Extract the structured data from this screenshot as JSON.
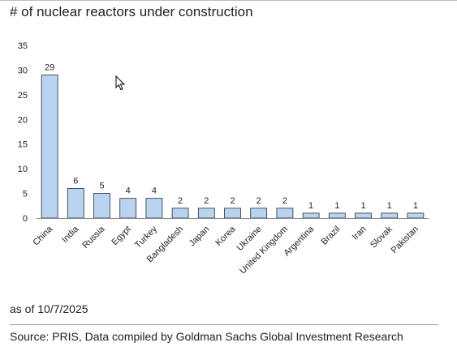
{
  "title": "# of nuclear reactors under construction",
  "note": "as of 10/7/2025",
  "source": "Source: PRIS, Data compiled by Goldman Sachs Global Investment Research",
  "colors": {
    "bar_fill": "#b9d3f0",
    "bar_stroke": "#1f2d3d",
    "axis": "#8c8c8c"
  },
  "icons": {
    "cursor": "mouse-pointer-icon"
  },
  "chart_data": {
    "type": "bar",
    "title": "# of nuclear reactors under construction",
    "xlabel": "",
    "ylabel": "",
    "categories": [
      "China",
      "India",
      "Russia",
      "Egypt",
      "Turkey",
      "Bangladesh",
      "Japan",
      "Korea",
      "Ukraine",
      "United Kingdom",
      "Argentina",
      "Brazil",
      "Iran",
      "Slovak",
      "Pakistan"
    ],
    "values": [
      29,
      6,
      5,
      4,
      4,
      2,
      2,
      2,
      2,
      2,
      1,
      1,
      1,
      1,
      1
    ],
    "ylim": [
      0,
      35
    ],
    "yticks": [
      0,
      5,
      10,
      15,
      20,
      25,
      30,
      35
    ],
    "grid": false,
    "legend": "none",
    "data_labels": true
  }
}
